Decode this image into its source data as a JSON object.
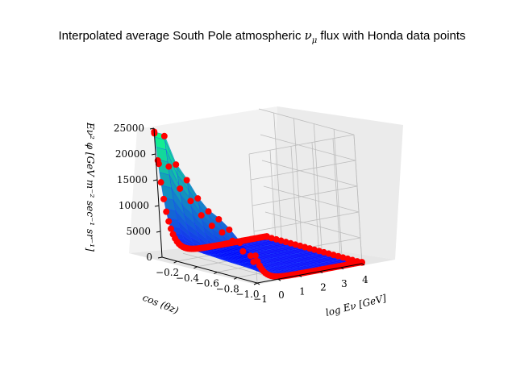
{
  "chart_data": {
    "type": "surface3d",
    "title": "Interpolated average South Pole atmospheric νμ flux with Honda data points",
    "title_main": "Interpolated average South Pole atmospheric ",
    "title_sym": "ν",
    "title_sub": "μ",
    "title_end": " flux with Honda data points",
    "xlabel": "log Eν [GeV]",
    "ylabel": "cos (θz)",
    "zlabel": "Eν² φ [GeV m⁻² sec⁻¹ sr⁻¹]",
    "x_ticks": [
      "−1",
      "0",
      "1",
      "2",
      "3",
      "4"
    ],
    "y_ticks": [
      "−0.2",
      "−0.4",
      "−0.6",
      "−0.8",
      "−1.0"
    ],
    "z_ticks": [
      "0",
      "5000",
      "10000",
      "15000",
      "20000",
      "25000"
    ],
    "xlim": [
      -1,
      4
    ],
    "ylim": [
      -0.05,
      -1.0
    ],
    "zlim": [
      0,
      25000
    ],
    "cos_values": [
      -0.05,
      -0.15,
      -0.25,
      -0.35,
      -0.45,
      -0.55,
      -0.65,
      -0.75,
      -0.85,
      -0.95
    ],
    "low_energy_flux": [
      24000,
      24000,
      19000,
      16500,
      13500,
      11500,
      10500,
      9000,
      7000,
      5000
    ],
    "energy_range": [
      -1,
      4
    ],
    "surface_colormap": "winter",
    "point_color": "#ff0000",
    "grid": true
  }
}
